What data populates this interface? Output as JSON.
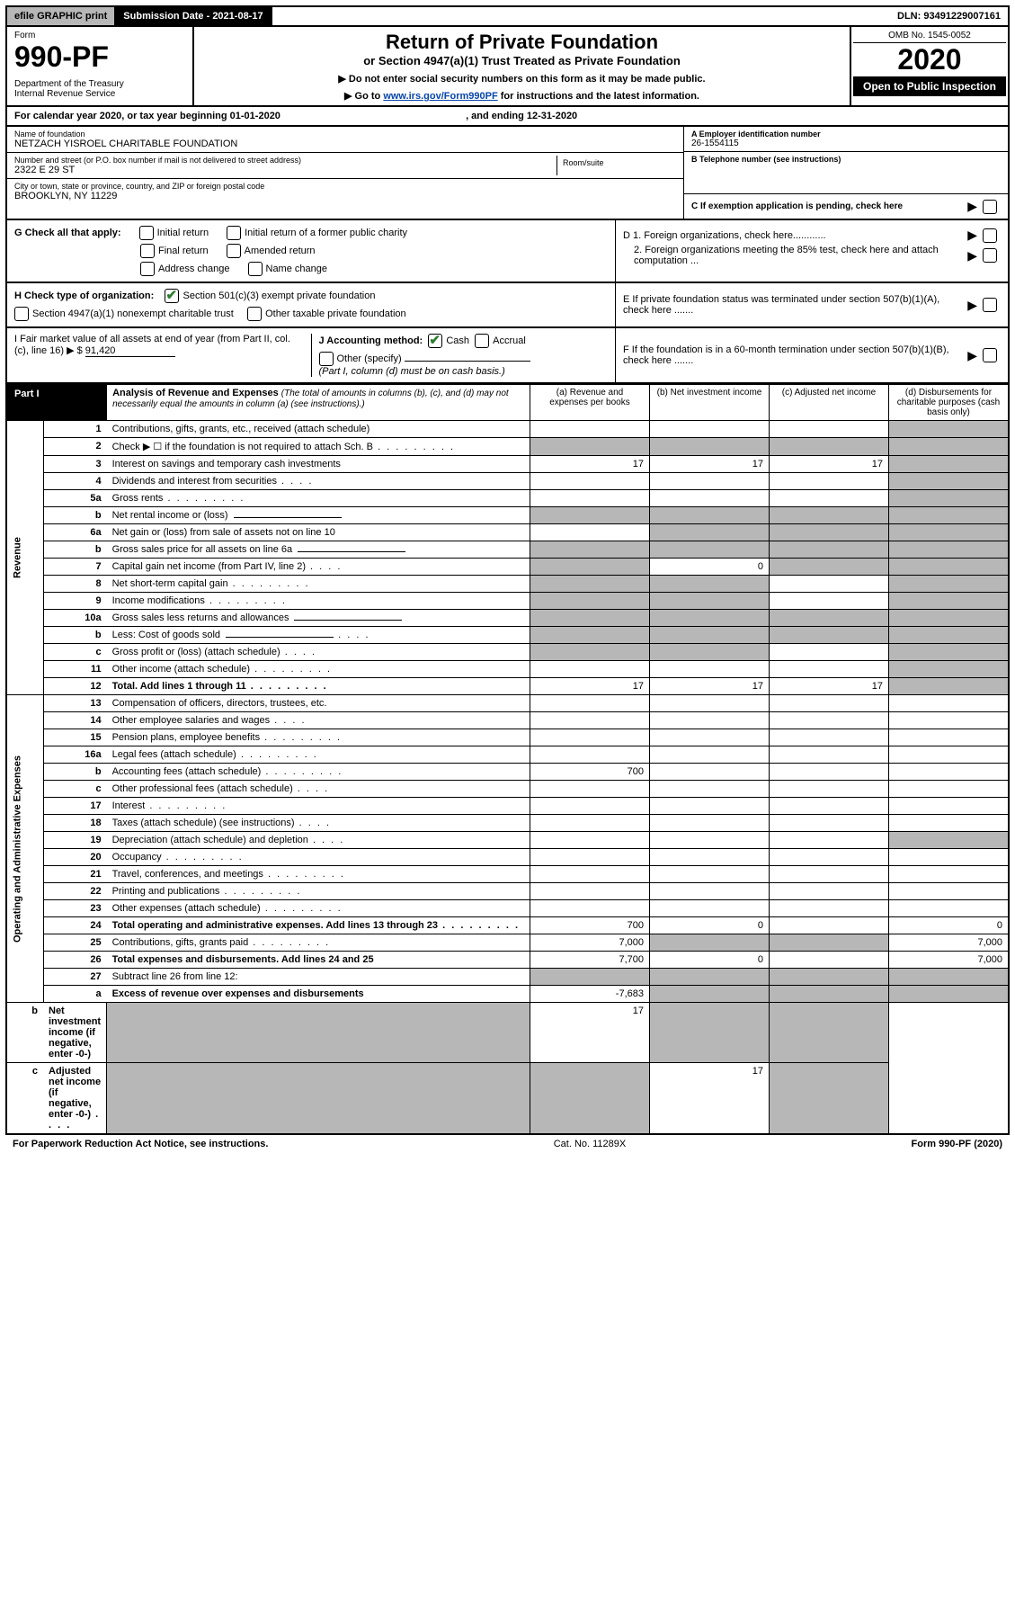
{
  "topbar": {
    "efile": "efile GRAPHIC print",
    "subdate_label": "Submission Date - 2021-08-17",
    "dln": "DLN: 93491229007161"
  },
  "header": {
    "form": "Form",
    "num": "990-PF",
    "dept": "Department of the Treasury\nInternal Revenue Service",
    "title": "Return of Private Foundation",
    "sub": "or Section 4947(a)(1) Trust Treated as Private Foundation",
    "note1": "▶ Do not enter social security numbers on this form as it may be made public.",
    "note2_pre": "▶ Go to ",
    "note2_link": "www.irs.gov/Form990PF",
    "note2_post": " for instructions and the latest information.",
    "omb": "OMB No. 1545-0052",
    "year": "2020",
    "inspect": "Open to Public Inspection"
  },
  "cal": {
    "text_pre": "For calendar year 2020, or tax year beginning ",
    "begin": "01-01-2020",
    "text_mid": " , and ending ",
    "end": "12-31-2020"
  },
  "name": {
    "lbl": "Name of foundation",
    "val": "NETZACH YISROEL CHARITABLE FOUNDATION"
  },
  "ein": {
    "lbl": "A Employer identification number",
    "val": "26-1554115"
  },
  "addr": {
    "lbl": "Number and street (or P.O. box number if mail is not delivered to street address)",
    "val": "2322 E 29 ST",
    "room_lbl": "Room/suite"
  },
  "tel": {
    "lbl": "B Telephone number (see instructions)"
  },
  "city": {
    "lbl": "City or town, state or province, country, and ZIP or foreign postal code",
    "val": "BROOKLYN, NY  11229"
  },
  "c": {
    "lbl": "C If exemption application is pending, check here"
  },
  "g": {
    "lbl": "G Check all that apply:",
    "initial": "Initial return",
    "initial_public": "Initial return of a former public charity",
    "final": "Final return",
    "amended": "Amended return",
    "address": "Address change",
    "name": "Name change"
  },
  "d": {
    "d1": "D 1. Foreign organizations, check here............",
    "d2": "2. Foreign organizations meeting the 85% test, check here and attach computation ..."
  },
  "h": {
    "lbl": "H Check type of organization:",
    "s501": "Section 501(c)(3) exempt private foundation",
    "s4947": "Section 4947(a)(1) nonexempt charitable trust",
    "other": "Other taxable private foundation"
  },
  "e": {
    "lbl": "E If private foundation status was terminated under section 507(b)(1)(A), check here ......."
  },
  "i": {
    "lbl": "I Fair market value of all assets at end of year (from Part II, col. (c), line 16) ▶ $",
    "val": "91,420"
  },
  "j": {
    "lbl": "J Accounting method:",
    "cash": "Cash",
    "accrual": "Accrual",
    "other": "Other (specify)",
    "note": "(Part I, column (d) must be on cash basis.)"
  },
  "f": {
    "lbl": "F If the foundation is in a 60-month termination under section 507(b)(1)(B), check here ......."
  },
  "part1": {
    "label": "Part I",
    "title": "Analysis of Revenue and Expenses",
    "title_note": "(The total of amounts in columns (b), (c), and (d) may not necessarily equal the amounts in column (a) (see instructions).)",
    "col_a": "(a) Revenue and expenses per books",
    "col_b": "(b) Net investment income",
    "col_c": "(c) Adjusted net income",
    "col_d": "(d) Disbursements for charitable purposes (cash basis only)"
  },
  "sections": {
    "revenue": "Revenue",
    "expenses": "Operating and Administrative Expenses"
  },
  "lines": [
    {
      "n": "1",
      "desc": "Contributions, gifts, grants, etc., received (attach schedule)",
      "a": "",
      "b": "",
      "c": "",
      "d": "shade"
    },
    {
      "n": "2",
      "desc": "Check ▶ ☐ if the foundation is not required to attach Sch. B",
      "a": "shade",
      "b": "shade",
      "c": "shade",
      "d": "shade",
      "dots": true
    },
    {
      "n": "3",
      "desc": "Interest on savings and temporary cash investments",
      "a": "17",
      "b": "17",
      "c": "17",
      "d": "shade"
    },
    {
      "n": "4",
      "desc": "Dividends and interest from securities",
      "a": "",
      "b": "",
      "c": "",
      "d": "shade",
      "dots": "short"
    },
    {
      "n": "5a",
      "desc": "Gross rents",
      "a": "",
      "b": "",
      "c": "",
      "d": "shade",
      "dots": true
    },
    {
      "n": "b",
      "desc": "Net rental income or (loss)",
      "a": "shade",
      "b": "shade",
      "c": "shade",
      "d": "shade",
      "underline": true
    },
    {
      "n": "6a",
      "desc": "Net gain or (loss) from sale of assets not on line 10",
      "a": "",
      "b": "shade",
      "c": "shade",
      "d": "shade"
    },
    {
      "n": "b",
      "desc": "Gross sales price for all assets on line 6a",
      "a": "shade",
      "b": "shade",
      "c": "shade",
      "d": "shade",
      "underline": true
    },
    {
      "n": "7",
      "desc": "Capital gain net income (from Part IV, line 2)",
      "a": "shade",
      "b": "0",
      "c": "shade",
      "d": "shade",
      "dots": "short"
    },
    {
      "n": "8",
      "desc": "Net short-term capital gain",
      "a": "shade",
      "b": "shade",
      "c": "",
      "d": "shade",
      "dots": true
    },
    {
      "n": "9",
      "desc": "Income modifications",
      "a": "shade",
      "b": "shade",
      "c": "",
      "d": "shade",
      "dots": true
    },
    {
      "n": "10a",
      "desc": "Gross sales less returns and allowances",
      "a": "shade",
      "b": "shade",
      "c": "shade",
      "d": "shade",
      "underline": true
    },
    {
      "n": "b",
      "desc": "Less: Cost of goods sold",
      "a": "shade",
      "b": "shade",
      "c": "shade",
      "d": "shade",
      "dots": "short",
      "underline": true
    },
    {
      "n": "c",
      "desc": "Gross profit or (loss) (attach schedule)",
      "a": "shade",
      "b": "shade",
      "c": "",
      "d": "shade",
      "dots": "short"
    },
    {
      "n": "11",
      "desc": "Other income (attach schedule)",
      "a": "",
      "b": "",
      "c": "",
      "d": "shade",
      "dots": true
    },
    {
      "n": "12",
      "desc": "Total. Add lines 1 through 11",
      "a": "17",
      "b": "17",
      "c": "17",
      "d": "shade",
      "bold": true,
      "dots": true
    },
    {
      "n": "13",
      "desc": "Compensation of officers, directors, trustees, etc.",
      "a": "",
      "b": "",
      "c": "",
      "d": ""
    },
    {
      "n": "14",
      "desc": "Other employee salaries and wages",
      "a": "",
      "b": "",
      "c": "",
      "d": "",
      "dots": "short"
    },
    {
      "n": "15",
      "desc": "Pension plans, employee benefits",
      "a": "",
      "b": "",
      "c": "",
      "d": "",
      "dots": true
    },
    {
      "n": "16a",
      "desc": "Legal fees (attach schedule)",
      "a": "",
      "b": "",
      "c": "",
      "d": "",
      "dots": true
    },
    {
      "n": "b",
      "desc": "Accounting fees (attach schedule)",
      "a": "700",
      "b": "",
      "c": "",
      "d": "",
      "dots": true
    },
    {
      "n": "c",
      "desc": "Other professional fees (attach schedule)",
      "a": "",
      "b": "",
      "c": "",
      "d": "",
      "dots": "short"
    },
    {
      "n": "17",
      "desc": "Interest",
      "a": "",
      "b": "",
      "c": "",
      "d": "",
      "dots": true
    },
    {
      "n": "18",
      "desc": "Taxes (attach schedule) (see instructions)",
      "a": "",
      "b": "",
      "c": "",
      "d": "",
      "dots": "short"
    },
    {
      "n": "19",
      "desc": "Depreciation (attach schedule) and depletion",
      "a": "",
      "b": "",
      "c": "",
      "d": "shade",
      "dots": "short"
    },
    {
      "n": "20",
      "desc": "Occupancy",
      "a": "",
      "b": "",
      "c": "",
      "d": "",
      "dots": true
    },
    {
      "n": "21",
      "desc": "Travel, conferences, and meetings",
      "a": "",
      "b": "",
      "c": "",
      "d": "",
      "dots": true
    },
    {
      "n": "22",
      "desc": "Printing and publications",
      "a": "",
      "b": "",
      "c": "",
      "d": "",
      "dots": true
    },
    {
      "n": "23",
      "desc": "Other expenses (attach schedule)",
      "a": "",
      "b": "",
      "c": "",
      "d": "",
      "dots": true
    },
    {
      "n": "24",
      "desc": "Total operating and administrative expenses. Add lines 13 through 23",
      "a": "700",
      "b": "0",
      "c": "",
      "d": "0",
      "bold": true,
      "dots": true
    },
    {
      "n": "25",
      "desc": "Contributions, gifts, grants paid",
      "a": "7,000",
      "b": "shade",
      "c": "shade",
      "d": "7,000",
      "dots": true
    },
    {
      "n": "26",
      "desc": "Total expenses and disbursements. Add lines 24 and 25",
      "a": "7,700",
      "b": "0",
      "c": "",
      "d": "7,000",
      "bold": true
    },
    {
      "n": "27",
      "desc": "Subtract line 26 from line 12:",
      "a": "shade",
      "b": "shade",
      "c": "shade",
      "d": "shade"
    },
    {
      "n": "a",
      "desc": "Excess of revenue over expenses and disbursements",
      "a": "-7,683",
      "b": "shade",
      "c": "shade",
      "d": "shade",
      "bold": true
    },
    {
      "n": "b",
      "desc": "Net investment income (if negative, enter -0-)",
      "a": "shade",
      "b": "17",
      "c": "shade",
      "d": "shade",
      "bold": true
    },
    {
      "n": "c",
      "desc": "Adjusted net income (if negative, enter -0-)",
      "a": "shade",
      "b": "shade",
      "c": "17",
      "d": "shade",
      "bold": true,
      "dots": "short"
    }
  ],
  "footer": {
    "left": "For Paperwork Reduction Act Notice, see instructions.",
    "mid": "Cat. No. 11289X",
    "right": "Form 990-PF (2020)"
  }
}
